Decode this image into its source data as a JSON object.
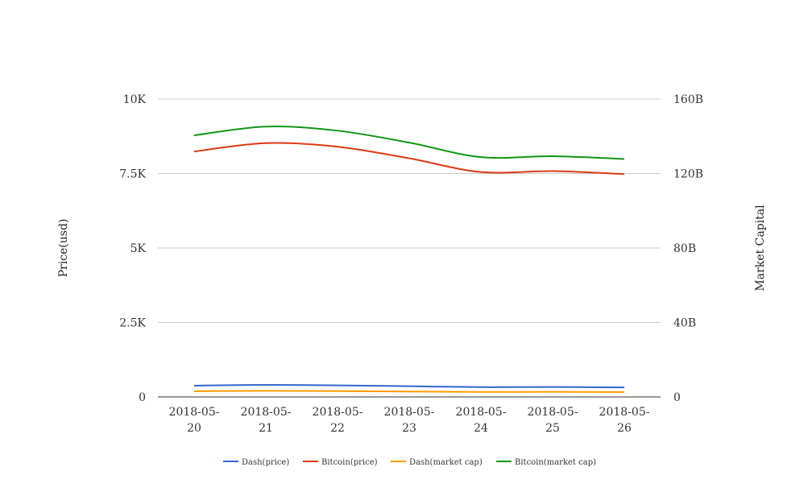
{
  "chart_data": {
    "type": "line",
    "categories": [
      [
        "2018-05-",
        "20"
      ],
      [
        "2018-05-",
        "21"
      ],
      [
        "2018-05-",
        "22"
      ],
      [
        "2018-05-",
        "23"
      ],
      [
        "2018-05-",
        "24"
      ],
      [
        "2018-05-",
        "25"
      ],
      [
        "2018-05-",
        "26"
      ]
    ],
    "y_left": {
      "label": "Price(usd)",
      "range": [
        0,
        10000
      ],
      "ticks": [
        0,
        2500,
        5000,
        7500,
        10000
      ],
      "tick_labels": [
        "0",
        "2.5K",
        "5K",
        "7.5K",
        "10K"
      ]
    },
    "y_right": {
      "label": "Market Capital",
      "range": [
        0,
        160000000000
      ],
      "ticks": [
        0,
        40000000000,
        80000000000,
        120000000000,
        160000000000
      ],
      "tick_labels": [
        "0",
        "40B",
        "80B",
        "120B",
        "160B"
      ]
    },
    "grid": true,
    "legend_position": "bottom",
    "series": [
      {
        "name": "Dash(price)",
        "axis": "left",
        "color": "#3366cc",
        "values": [
          380,
          405,
          390,
          360,
          330,
          335,
          320
        ]
      },
      {
        "name": "Bitcoin(price)",
        "axis": "left",
        "color": "#dc3912",
        "values": [
          8240,
          8520,
          8400,
          8010,
          7550,
          7580,
          7480
        ]
      },
      {
        "name": "Dash(market cap)",
        "axis": "right",
        "color": "#ff9900",
        "values": [
          3100000000,
          3300000000,
          3150000000,
          2900000000,
          2700000000,
          2750000000,
          2650000000
        ]
      },
      {
        "name": "Bitcoin(market cap)",
        "axis": "right",
        "color": "#109618",
        "values": [
          140500000000,
          145200000000,
          143000000000,
          136600000000,
          128800000000,
          129300000000,
          127800000000
        ]
      }
    ]
  }
}
